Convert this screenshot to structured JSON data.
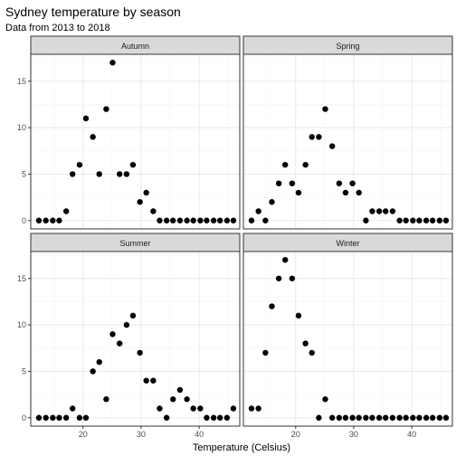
{
  "chart_data": {
    "type": "scatter",
    "title": "Sydney temperature by season",
    "subtitle": "Data from 2013 to 2018",
    "xlabel": "Temperature (Celsius)",
    "ylabel": "",
    "xlim": [
      11,
      47
    ],
    "ylim": [
      -0.9,
      17.9
    ],
    "x_ticks": [
      20,
      30,
      40
    ],
    "y_ticks": [
      0,
      5,
      10,
      15
    ],
    "grid": true,
    "legend": "none",
    "colors": {
      "point": "#000000",
      "strip_fill": "#d9d9d9",
      "grid_major": "#ebebeb",
      "grid_minor": "#f5f5f5",
      "border": "#333333"
    },
    "x": [
      12.4,
      13.6,
      14.8,
      15.9,
      17.1,
      18.2,
      19.4,
      20.5,
      21.7,
      22.8,
      24.0,
      25.1,
      26.3,
      27.5,
      28.6,
      29.8,
      30.9,
      32.1,
      33.2,
      34.4,
      35.5,
      36.7,
      37.9,
      39.0,
      40.2,
      41.3,
      42.5,
      43.6,
      44.8,
      45.9
    ],
    "panels": [
      {
        "name": "Autumn",
        "values": [
          0,
          0,
          0,
          0,
          1,
          5,
          6,
          11,
          9,
          5,
          12,
          17,
          5,
          5,
          6,
          2,
          3,
          1,
          0,
          0,
          0,
          0,
          0,
          0,
          0,
          0,
          0,
          0,
          0,
          0
        ]
      },
      {
        "name": "Spring",
        "values": [
          0,
          1,
          0,
          2,
          4,
          6,
          4,
          3,
          6,
          9,
          9,
          12,
          8,
          4,
          3,
          4,
          3,
          0,
          1,
          1,
          1,
          1,
          0,
          0,
          0,
          0,
          0,
          0,
          0,
          0
        ]
      },
      {
        "name": "Summer",
        "values": [
          0,
          0,
          0,
          0,
          0,
          1,
          0,
          0,
          5,
          6,
          2,
          9,
          8,
          10,
          11,
          7,
          4,
          4,
          1,
          0,
          2,
          3,
          2,
          1,
          1,
          0,
          0,
          0,
          0,
          1
        ]
      },
      {
        "name": "Winter",
        "values": [
          1,
          1,
          7,
          12,
          15,
          17,
          15,
          11,
          8,
          7,
          0,
          2,
          0,
          0,
          0,
          0,
          0,
          0,
          0,
          0,
          0,
          0,
          0,
          0,
          0,
          0,
          0,
          0,
          0,
          0
        ]
      }
    ]
  }
}
